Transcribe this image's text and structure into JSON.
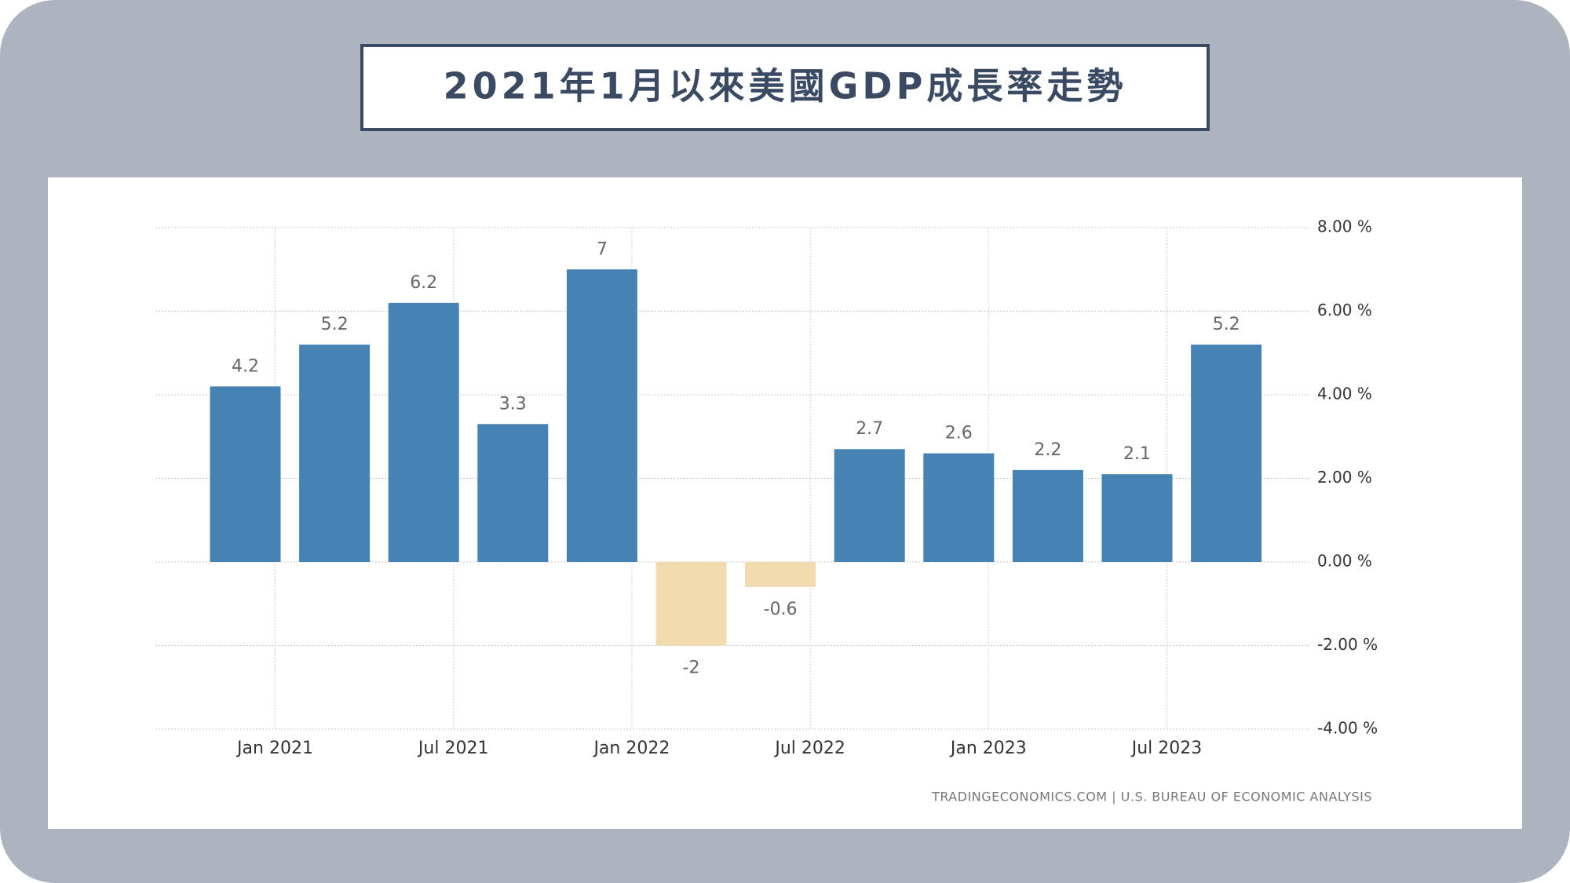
{
  "chart_data": {
    "type": "bar",
    "title": "2021年1月以來美國GDP成長率走勢",
    "source": "TRADINGECONOMICS.COM  |  U.S. BUREAU OF ECONOMIC ANALYSIS",
    "categories": [
      "Jan 2021",
      null,
      "Jul 2021",
      null,
      "Jan 2022",
      null,
      "Jul 2022",
      null,
      "Jan 2023",
      null,
      "Jul 2023",
      null
    ],
    "values": [
      4.2,
      5.2,
      6.2,
      3.3,
      7,
      -2,
      -0.6,
      2.7,
      2.6,
      2.2,
      2.1,
      5.2
    ],
    "color": "#4682b4",
    "negative_color": "#f1dbaf",
    "ylim": [
      -4,
      8
    ],
    "yticks": [
      {
        "value": -4,
        "label": "-4.00 %"
      },
      {
        "value": -2,
        "label": "-2.00 %"
      },
      {
        "value": 0,
        "label": "0.00 %"
      },
      {
        "value": 2,
        "label": "2.00 %"
      },
      {
        "value": 4,
        "label": "4.00 %"
      },
      {
        "value": 6,
        "label": "6.00 %"
      },
      {
        "value": 8,
        "label": "8.00 %"
      }
    ],
    "grid": true,
    "y_axis_side": "right"
  }
}
